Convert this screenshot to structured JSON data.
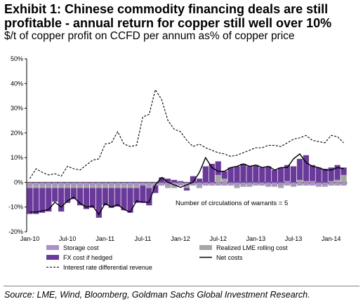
{
  "header": {
    "title": "Exhibit 1: Chinese commodity financing deals are still profitable - annual return for copper still well over 10%",
    "subtitle": "$/t of copper profit on CCFD per annum as% of copper price"
  },
  "footer": {
    "source": "Source: LME, Wind, Bloomberg, Goldman Sachs Global Investment Research."
  },
  "chart_data": {
    "type": "bar",
    "title": "Exhibit 1: Chinese commodity financing deals are still profitable - annual return for copper still well over 10%",
    "subtitle": "$/t of copper profit on CCFD per annum as% of copper price",
    "ylim": [
      -20,
      50
    ],
    "y_ticks": [
      "50%",
      "40%",
      "30%",
      "20%",
      "10%",
      "0%",
      "-10%",
      "-20%"
    ],
    "x_ticks": [
      "Jan-10",
      "Jul-10",
      "Jan-11",
      "Jul-11",
      "Jan-12",
      "Jul-12",
      "Jan-13",
      "Jul-13",
      "Jan-14"
    ],
    "x_start": "Jan-10",
    "grid": false,
    "legend_position": "bottom",
    "annotation": "Number of circulations of warrants = 5",
    "colors": {
      "storage": "#a991c8",
      "realized_lme": "#a6a6a6",
      "fx": "#6a3a9a",
      "irate": "#000000",
      "net": "#000000"
    },
    "series": [
      {
        "name": "Storage cost",
        "type": "bar",
        "values": [
          -1.3,
          -1.3,
          -1.3,
          -1.3,
          -1.3,
          -1.3,
          -1.3,
          -1.3,
          -1.3,
          -1.3,
          -1.3,
          -1.3,
          -1.3,
          -1.3,
          -1.3,
          -1.3,
          -1.3,
          -1.3,
          -1.3,
          -1.3,
          -1.3,
          -1.3,
          -1.3,
          -1.3,
          -1.3,
          -1.3,
          -1.3,
          -1.3,
          -1.3,
          -1.3,
          -1.3,
          -1.3,
          -1.3,
          -1.3,
          -1.3,
          -1.3,
          -1.3,
          -1.3,
          -1.3,
          -1.3,
          -1.3,
          -1.3,
          -1.3,
          -1.3,
          -1.3,
          -1.3,
          -1.3,
          -1.3,
          -1.3,
          -1.3,
          -1.3
        ]
      },
      {
        "name": "Realized LME rolling cost",
        "type": "bar",
        "values": [
          -1,
          -1,
          -1,
          -1,
          -1,
          -1,
          -1,
          -1,
          -1,
          -1,
          -1,
          -1,
          -1,
          -1,
          -1,
          -1,
          -1,
          -1,
          0,
          -1,
          0,
          0,
          -1,
          -1,
          0,
          -1,
          0,
          -1,
          0,
          0,
          3,
          1.5,
          0,
          -1,
          -0.5,
          -0.5,
          0,
          0,
          -0.5,
          -0.5,
          -1,
          0.5,
          -0.5,
          1,
          0.5,
          0.5,
          -0.5,
          -0.5,
          0.5,
          1,
          3
        ]
      },
      {
        "name": "FX cost if hedged",
        "type": "bar",
        "values": [
          -10.5,
          -10.5,
          -10,
          -9.5,
          -5.5,
          -9.5,
          -6,
          -4.5,
          -7,
          -8.5,
          -8,
          -12,
          -7,
          -8,
          -7.5,
          -9,
          -10,
          -6,
          -7,
          -7,
          -3,
          2,
          1.5,
          1,
          0.5,
          -1,
          2.5,
          1.5,
          6.5,
          7.5,
          5.5,
          3,
          6,
          6.5,
          7.5,
          6.5,
          7,
          6,
          6.5,
          5,
          6,
          6.5,
          6.5,
          8.5,
          10.5,
          6.5,
          6,
          5.5,
          5.5,
          6,
          3
        ]
      },
      {
        "name": "Interest rate differential revenue",
        "type": "line",
        "values": [
          1.5,
          5.5,
          4,
          3,
          3.5,
          2.5,
          6.5,
          5.5,
          5,
          7,
          9,
          9.5,
          15.5,
          16,
          20.5,
          15.5,
          14.5,
          15,
          26.5,
          27.5,
          37.5,
          33.5,
          25,
          21.5,
          20.5,
          17,
          14.5,
          15.5,
          14,
          13,
          12,
          11.5,
          10.5,
          11,
          12,
          13,
          14,
          14,
          15,
          15,
          14.5,
          16,
          17.5,
          18,
          19,
          17,
          16.5,
          16,
          19,
          18.5,
          16
        ]
      },
      {
        "name": "Net costs",
        "type": "line",
        "values": [
          -12,
          -12,
          -11.5,
          -11,
          -8,
          -10,
          -7.5,
          -6,
          -8.5,
          -10,
          -9.5,
          -13,
          -8.5,
          -10,
          -9,
          -11,
          -12,
          -7.5,
          -8,
          -8,
          -1,
          2,
          0,
          -1,
          -2,
          -1,
          0,
          4,
          10,
          6,
          4.5,
          4.5,
          6,
          6.5,
          7.5,
          6.5,
          7,
          6,
          6.5,
          5,
          6,
          6,
          9.5,
          11.5,
          8,
          6.5,
          6,
          5,
          5,
          6,
          5.5
        ]
      }
    ]
  }
}
